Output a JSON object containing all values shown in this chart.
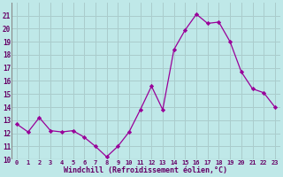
{
  "x": [
    0,
    1,
    2,
    3,
    4,
    5,
    6,
    7,
    8,
    9,
    10,
    11,
    12,
    13,
    14,
    15,
    16,
    17,
    18,
    19,
    20,
    21,
    22,
    23
  ],
  "y": [
    12.7,
    12.1,
    13.2,
    12.2,
    12.1,
    12.2,
    11.7,
    11.0,
    10.2,
    11.0,
    12.1,
    13.8,
    15.6,
    13.8,
    18.4,
    19.9,
    21.1,
    20.4,
    20.5,
    19.0,
    16.7,
    15.4,
    15.1,
    14.0
  ],
  "line_color": "#990099",
  "marker": "D",
  "marker_size": 2.2,
  "background_color": "#bfe8e8",
  "grid_color": "#aacccc",
  "xlabel": "Windchill (Refroidissement éolien,°C)",
  "xlabel_color": "#660066",
  "tick_color": "#660066",
  "ylim": [
    10,
    22
  ],
  "xlim": [
    -0.5,
    23.5
  ],
  "yticks": [
    10,
    11,
    12,
    13,
    14,
    15,
    16,
    17,
    18,
    19,
    20,
    21
  ],
  "xticks": [
    0,
    1,
    2,
    3,
    4,
    5,
    6,
    7,
    8,
    9,
    10,
    11,
    12,
    13,
    14,
    15,
    16,
    17,
    18,
    19,
    20,
    21,
    22,
    23
  ]
}
